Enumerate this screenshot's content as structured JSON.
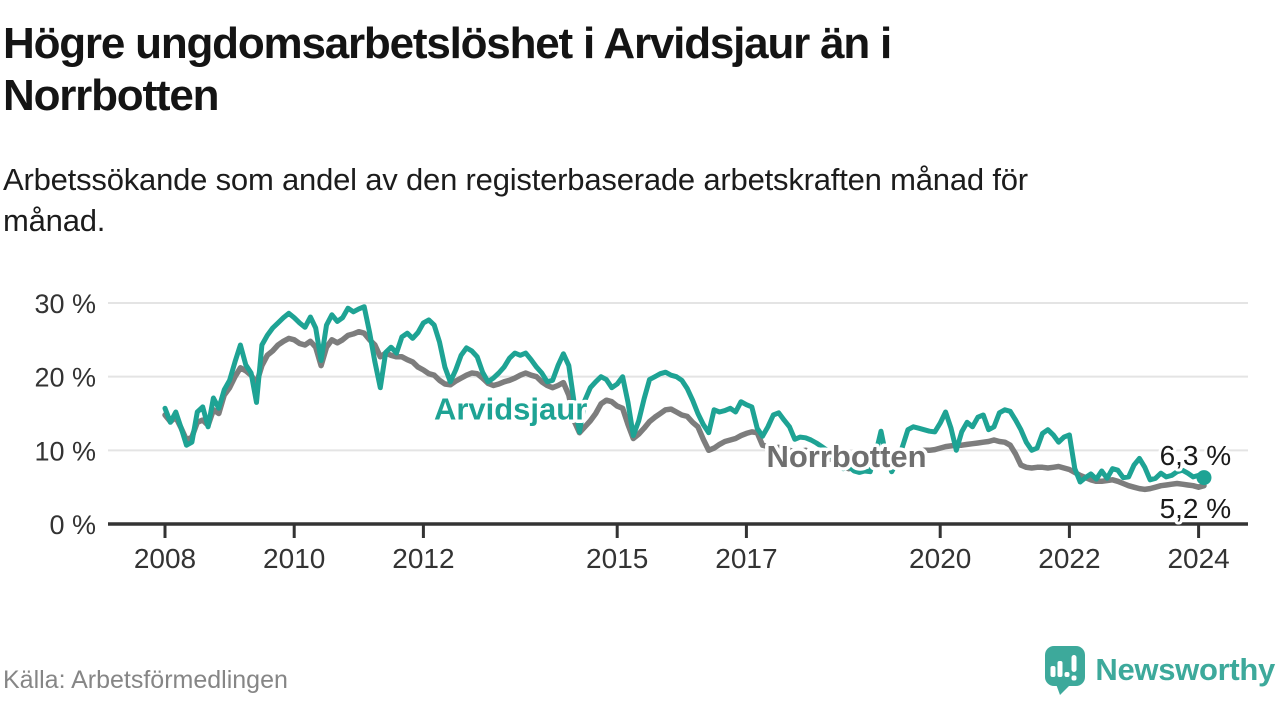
{
  "header": {
    "title_lines": [
      "Högre ungdomsarbetslöshet i Arvidsjaur än i",
      "Norrbotten"
    ],
    "subtitle_lines": [
      "Arbetssökande som andel av den registerbaserade arbetskraften månad för",
      "månad."
    ]
  },
  "footer": {
    "source": "Källa: Arbetsförmedlingen",
    "brand": "Newsworthy",
    "brand_color": "#3da99b"
  },
  "chart_data": {
    "type": "line",
    "title": "Högre ungdomsarbetslöshet i Arvidsjaur än i Norrbotten",
    "subtitle": "Arbetssökande som andel av den registerbaserade arbetskraften månad för månad.",
    "frequency": "monthly",
    "x_start_year": 2008,
    "x_axis": {
      "tick_years": [
        2008,
        2010,
        2012,
        2015,
        2017,
        2020,
        2022,
        2024
      ],
      "tick_labels": [
        "2008",
        "2010",
        "2012",
        "2015",
        "2017",
        "2020",
        "2022",
        "2024"
      ]
    },
    "y_axis": {
      "ticks": [
        0,
        10,
        20,
        30
      ],
      "tick_labels": [
        "0 %",
        "10 %",
        "20 %",
        "30 %"
      ],
      "range": [
        0,
        31.5
      ],
      "unit": "percent",
      "grid": true
    },
    "colors": {
      "arvidsjaur": "#1ea394",
      "norrbotten": "#7d7d7d",
      "grid": "#e4e4e4",
      "axis": "#333333",
      "value_label": "#1a1a1a"
    },
    "series": [
      {
        "name": "Norrbotten",
        "color": "#7d7d7d",
        "stroke_width": 5.5,
        "end_marker": false,
        "values": [
          14.8,
          13.9,
          14.5,
          13.0,
          11.4,
          11.8,
          13.8,
          14.1,
          13.4,
          15.5,
          15.0,
          17.5,
          18.5,
          20.0,
          21.2,
          20.8,
          20.2,
          19.1,
          21.5,
          22.9,
          23.5,
          24.3,
          24.8,
          25.2,
          25.0,
          24.5,
          24.3,
          24.8,
          24.0,
          21.5,
          24.0,
          25.0,
          24.6,
          25.0,
          25.6,
          25.8,
          26.1,
          25.9,
          25.0,
          24.3,
          22.7,
          23.2,
          22.9,
          22.7,
          22.7,
          22.3,
          22.0,
          21.3,
          20.9,
          20.4,
          20.2,
          19.5,
          19.0,
          18.9,
          19.4,
          19.8,
          20.2,
          20.5,
          20.4,
          19.8,
          19.1,
          18.8,
          19.0,
          19.3,
          19.5,
          19.8,
          20.2,
          20.5,
          20.2,
          20.0,
          19.3,
          18.8,
          18.5,
          18.8,
          19.2,
          17.5,
          14.0,
          12.4,
          13.2,
          14.0,
          15.0,
          16.3,
          16.8,
          16.6,
          16.0,
          15.7,
          13.5,
          11.6,
          12.2,
          13.0,
          13.9,
          14.5,
          15.0,
          15.5,
          15.6,
          15.2,
          14.8,
          14.6,
          13.8,
          13.2,
          11.5,
          10.0,
          10.3,
          10.8,
          11.2,
          11.4,
          11.6,
          12.0,
          12.3,
          12.5,
          12.4,
          10.7,
          10.5,
          10.3,
          10.4,
          10.2,
          10.0,
          9.8,
          9.9,
          10.0,
          9.8,
          9.5,
          9.2,
          9.0,
          8.7,
          8.3,
          7.8,
          7.5,
          7.7,
          8.0,
          8.2,
          8.4,
          8.6,
          8.8,
          8.5,
          8.3,
          8.6,
          9.0,
          9.4,
          9.6,
          9.8,
          10.0,
          10.0,
          10.1,
          10.3,
          10.5,
          10.6,
          10.7,
          10.7,
          10.8,
          10.9,
          11.0,
          11.1,
          11.2,
          11.4,
          11.2,
          11.1,
          10.7,
          9.5,
          8.0,
          7.7,
          7.6,
          7.7,
          7.7,
          7.6,
          7.7,
          7.8,
          7.6,
          7.4,
          7.0,
          6.6,
          6.3,
          6.0,
          5.8,
          5.8,
          5.9,
          6.0,
          5.8,
          5.5,
          5.2,
          5.0,
          4.8,
          4.7,
          4.8,
          5.0,
          5.2,
          5.3,
          5.4,
          5.5,
          5.4,
          5.3,
          5.2,
          5.0,
          5.2
        ]
      },
      {
        "name": "Arvidsjaur",
        "color": "#1ea394",
        "stroke_width": 5,
        "end_marker": true,
        "values": [
          15.7,
          13.8,
          15.2,
          13.0,
          10.7,
          11.1,
          15.2,
          15.9,
          13.2,
          17.1,
          15.7,
          18.2,
          19.5,
          22.0,
          24.3,
          21.6,
          20.5,
          16.5,
          24.3,
          25.6,
          26.6,
          27.3,
          28.0,
          28.6,
          28.0,
          27.3,
          26.7,
          28.1,
          26.6,
          22.2,
          27.0,
          28.4,
          27.5,
          28.0,
          29.3,
          28.8,
          29.2,
          29.5,
          26.0,
          22.0,
          18.5,
          23.3,
          24.0,
          23.2,
          25.4,
          25.9,
          25.2,
          26.0,
          27.3,
          27.7,
          27.0,
          24.7,
          21.3,
          19.3,
          20.9,
          22.9,
          23.9,
          23.5,
          22.7,
          20.6,
          19.3,
          19.8,
          20.5,
          21.3,
          22.5,
          23.2,
          22.9,
          23.2,
          22.3,
          21.3,
          20.5,
          19.3,
          19.5,
          21.5,
          23.1,
          21.5,
          16.5,
          12.5,
          16.8,
          18.5,
          19.3,
          20.0,
          19.6,
          18.5,
          19.0,
          20.0,
          16.5,
          12.0,
          14.0,
          17.0,
          19.6,
          20.0,
          20.4,
          20.6,
          20.2,
          20.0,
          19.5,
          18.4,
          16.8,
          15.0,
          13.5,
          12.4,
          15.5,
          15.2,
          15.4,
          15.7,
          15.2,
          16.6,
          16.2,
          15.9,
          13.0,
          11.9,
          13.2,
          14.8,
          15.1,
          14.1,
          13.2,
          11.5,
          11.8,
          11.7,
          11.4,
          11.0,
          10.5,
          10.0,
          9.0,
          8.0,
          7.5,
          7.8,
          7.2,
          7.0,
          7.2,
          7.1,
          9.5,
          12.6,
          9.0,
          7.1,
          8.5,
          10.5,
          12.8,
          13.2,
          13.0,
          12.8,
          12.6,
          12.5,
          13.7,
          15.2,
          13.0,
          10.0,
          12.5,
          13.8,
          13.2,
          14.5,
          14.8,
          12.8,
          13.2,
          15.1,
          15.5,
          15.3,
          14.1,
          12.8,
          11.1,
          10.0,
          10.3,
          12.3,
          12.8,
          12.1,
          11.1,
          11.8,
          12.1,
          7.5,
          5.7,
          6.3,
          6.8,
          6.1,
          7.2,
          6.2,
          7.5,
          7.3,
          6.3,
          6.4,
          8.0,
          8.9,
          7.7,
          6.0,
          6.2,
          6.9,
          6.4,
          6.6,
          7.1,
          7.3,
          6.9,
          6.4,
          6.6,
          6.3
        ]
      }
    ],
    "series_labels": [
      {
        "text": "Arvidsjaur",
        "x_year": 2013.35,
        "y_value": 15.7,
        "color": "#1ea394"
      },
      {
        "text": "Norrbotten",
        "x_year": 2018.55,
        "y_value": 9.2,
        "color": "#6f6f6f"
      }
    ],
    "value_labels": [
      {
        "text": "6,3 %",
        "x_year": 2023.95,
        "y_value": 9.35,
        "series": "Arvidsjaur"
      },
      {
        "text": "5,2 %",
        "x_year": 2023.95,
        "y_value": 2.15,
        "series": "Norrbotten"
      }
    ],
    "end_values": {
      "arvidsjaur": "6,3 %",
      "norrbotten": "5,2 %"
    }
  },
  "logo": {
    "icon": "newsworthy-bubble-barchart-icon",
    "color": "#3da99b"
  }
}
